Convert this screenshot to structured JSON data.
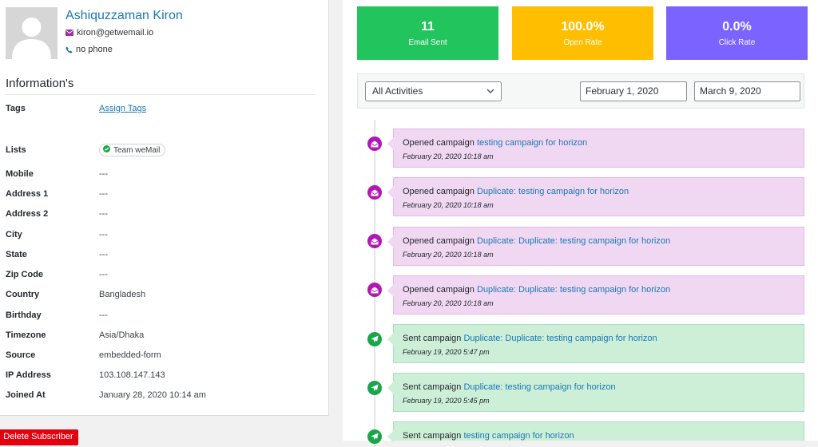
{
  "profile": {
    "name": "Ashiquzzaman Kiron",
    "email": "kiron@getwemail.io",
    "phone": "no phone"
  },
  "info": {
    "heading": "Information's",
    "tags_label": "Tags",
    "assign_tags": "Assign Tags",
    "lists_label": "Lists",
    "list_badge": "Team weMail",
    "fields": [
      {
        "label": "Mobile",
        "value": "---"
      },
      {
        "label": "Address 1",
        "value": "---"
      },
      {
        "label": "Address 2",
        "value": "---"
      },
      {
        "label": "City",
        "value": "---"
      },
      {
        "label": "State",
        "value": "---"
      },
      {
        "label": "Zip Code",
        "value": "---"
      },
      {
        "label": "Country",
        "value": "Bangladesh"
      },
      {
        "label": "Birthday",
        "value": "---"
      },
      {
        "label": "Timezone",
        "value": "Asia/Dhaka"
      },
      {
        "label": "Source",
        "value": "embedded-form"
      },
      {
        "label": "IP Address",
        "value": "103.108.147.143"
      },
      {
        "label": "Joined At",
        "value": "January 28, 2020 10:14 am"
      }
    ],
    "delete_button": "Delete Subscriber"
  },
  "stats": [
    {
      "value": "11",
      "label": "Email Sent",
      "color": "#22c45e"
    },
    {
      "value": "100.0%",
      "label": "Open Rate",
      "color": "#ffbf00"
    },
    {
      "value": "0.0%",
      "label": "Click Rate",
      "color": "#7b63ff"
    }
  ],
  "filters": {
    "activity": "All Activities",
    "date_from": "February 1, 2020",
    "date_to": "March 9, 2020"
  },
  "timeline": [
    {
      "type": "open",
      "action": "Opened campaign",
      "campaign": "testing campaign for horizon",
      "time": "February 20, 2020 10:18 am"
    },
    {
      "type": "open",
      "action": "Opened campaign",
      "campaign": "Duplicate: testing campaign for horizon",
      "time": "February 20, 2020 10:18 am"
    },
    {
      "type": "open",
      "action": "Opened campaign",
      "campaign": "Duplicate: Duplicate: testing campaign for horizon",
      "time": "February 20, 2020 10:18 am"
    },
    {
      "type": "open",
      "action": "Opened campaign",
      "campaign": "Duplicate: Duplicate: testing campaign for horizon",
      "time": "February 20, 2020 10:18 am"
    },
    {
      "type": "sent",
      "action": "Sent campaign",
      "campaign": "Duplicate: Duplicate: testing campaign for horizon",
      "time": "February 19, 2020 5:47 pm"
    },
    {
      "type": "sent",
      "action": "Sent campaign",
      "campaign": "Duplicate: testing campaign for horizon",
      "time": "February 19, 2020 5:45 pm"
    },
    {
      "type": "sent",
      "action": "Sent campaign",
      "campaign": "testing campaign for horizon",
      "time": ""
    }
  ]
}
